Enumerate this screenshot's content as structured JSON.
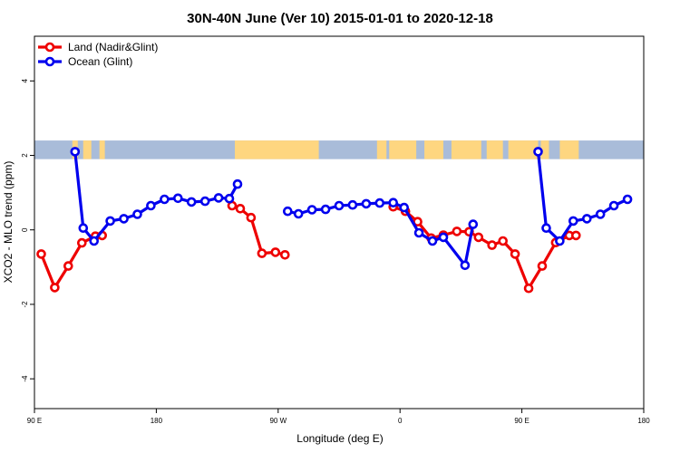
{
  "chart_data": {
    "type": "line",
    "title": "30N-40N June (Ver 10)   2015-01-01 to 2020-12-18",
    "xlabel": "Longitude (deg E)",
    "ylabel": "XCO2 - MLO trend (ppm)",
    "xlim": [
      90,
      540
    ],
    "ylim": [
      -4.8,
      5.2
    ],
    "x_ticks": [
      {
        "value": 90,
        "label": "90 E"
      },
      {
        "value": 180,
        "label": "180"
      },
      {
        "value": 270,
        "label": "90 W"
      },
      {
        "value": 360,
        "label": "0"
      },
      {
        "value": 450,
        "label": "90 E"
      },
      {
        "value": 540,
        "label": "180"
      }
    ],
    "y_ticks": [
      {
        "value": -4,
        "label": "-4"
      },
      {
        "value": -2,
        "label": "-2"
      },
      {
        "value": 0,
        "label": "0"
      },
      {
        "value": 2,
        "label": "2"
      },
      {
        "value": 4,
        "label": "4"
      }
    ],
    "legend_position": "top-left",
    "grid": false,
    "map_band": {
      "y_range": [
        1.9,
        2.4
      ],
      "ocean_color": "#a9bcd9",
      "land_color": "#fed680"
    },
    "series": [
      {
        "name": "Land (Nadir&Glint)",
        "color": "#ee0000",
        "segments": [
          [
            [
              95,
              -0.65
            ],
            [
              105,
              -1.55
            ],
            [
              115,
              -0.97
            ],
            [
              125,
              -0.35
            ],
            [
              135,
              -0.17
            ],
            [
              140,
              -0.15
            ]
          ],
          [
            [
              236,
              0.65
            ],
            [
              242,
              0.57
            ],
            [
              250,
              0.33
            ],
            [
              258,
              -0.63
            ],
            [
              268,
              -0.6
            ],
            [
              275,
              -0.67
            ]
          ],
          [
            [
              355,
              0.62
            ],
            [
              364,
              0.5
            ],
            [
              373,
              0.22
            ],
            [
              383,
              -0.22
            ],
            [
              392,
              -0.14
            ],
            [
              402,
              -0.04
            ],
            [
              411,
              -0.05
            ],
            [
              418,
              -0.2
            ],
            [
              428,
              -0.41
            ],
            [
              436,
              -0.3
            ],
            [
              445,
              -0.65
            ],
            [
              455,
              -1.57
            ],
            [
              465,
              -0.97
            ],
            [
              475,
              -0.34
            ],
            [
              485,
              -0.15
            ],
            [
              490,
              -0.15
            ]
          ]
        ]
      },
      {
        "name": "Ocean (Glint)",
        "color": "#0000ee",
        "segments": [
          [
            [
              120,
              2.1
            ],
            [
              126,
              0.05
            ],
            [
              134,
              -0.3
            ],
            [
              146,
              0.24
            ],
            [
              156,
              0.3
            ],
            [
              166,
              0.42
            ],
            [
              176,
              0.65
            ],
            [
              186,
              0.82
            ],
            [
              196,
              0.85
            ],
            [
              206,
              0.75
            ],
            [
              216,
              0.77
            ],
            [
              226,
              0.86
            ],
            [
              234,
              0.84
            ],
            [
              240,
              1.23
            ]
          ],
          [
            [
              277,
              0.5
            ],
            [
              285,
              0.43
            ],
            [
              295,
              0.54
            ],
            [
              305,
              0.55
            ],
            [
              315,
              0.65
            ],
            [
              325,
              0.67
            ],
            [
              335,
              0.7
            ],
            [
              345,
              0.72
            ],
            [
              355,
              0.73
            ],
            [
              363,
              0.6
            ],
            [
              374,
              -0.08
            ],
            [
              384,
              -0.3
            ],
            [
              392,
              -0.2
            ],
            [
              408,
              -0.95
            ],
            [
              414,
              0.15
            ]
          ],
          [
            [
              462,
              2.1
            ],
            [
              468,
              0.05
            ],
            [
              478,
              -0.3
            ],
            [
              488,
              0.24
            ],
            [
              498,
              0.3
            ],
            [
              508,
              0.42
            ],
            [
              518,
              0.65
            ],
            [
              528,
              0.82
            ]
          ]
        ]
      }
    ]
  }
}
